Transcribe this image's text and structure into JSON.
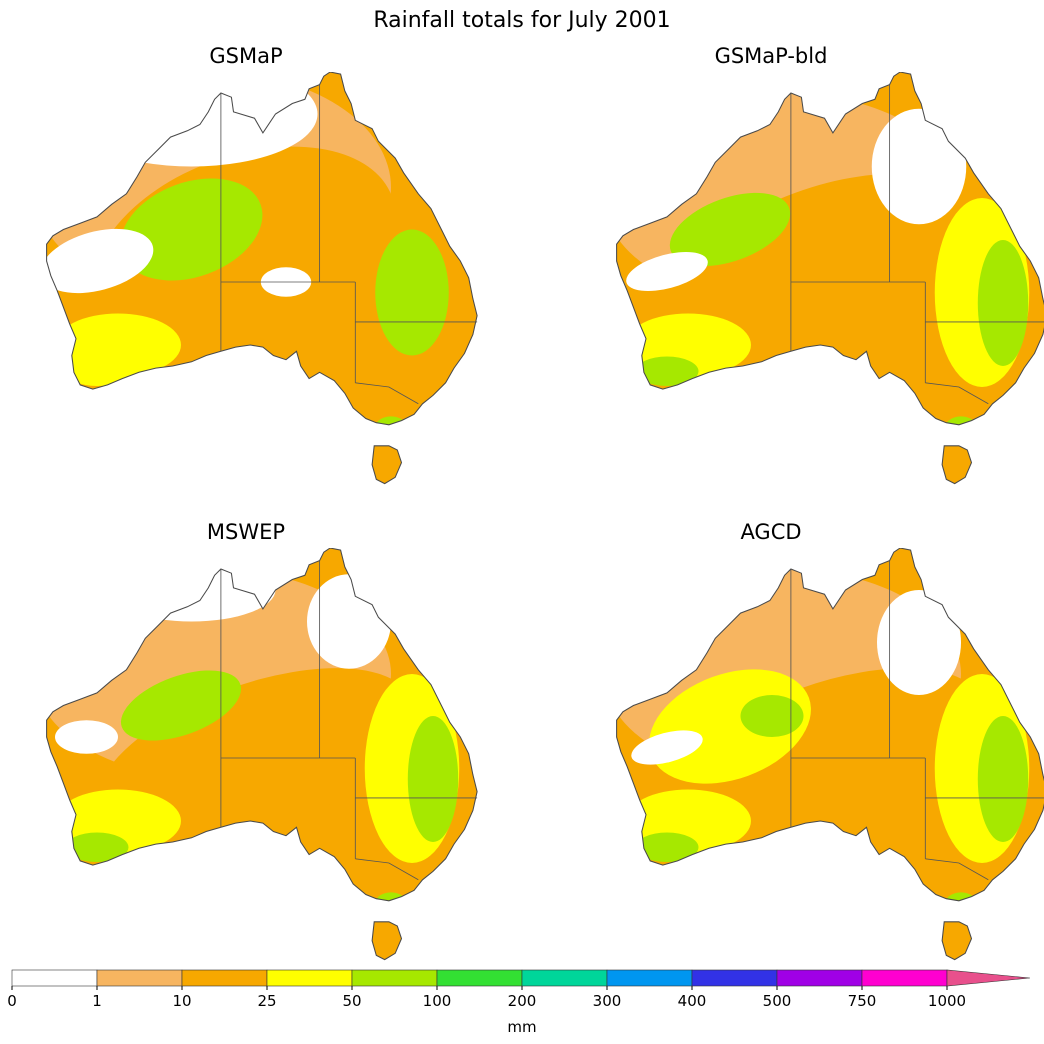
{
  "figure": {
    "title": "Rainfall totals for July 2001"
  },
  "panels": [
    {
      "id": "gsmap",
      "title": "GSMaP"
    },
    {
      "id": "gsmap-bld",
      "title": "GSMaP-bld"
    },
    {
      "id": "mswep",
      "title": "MSWEP"
    },
    {
      "id": "agcd",
      "title": "AGCD"
    }
  ],
  "colorbar": {
    "unit": "mm",
    "ticks": [
      "0",
      "1",
      "10",
      "25",
      "50",
      "100",
      "200",
      "300",
      "400",
      "500",
      "750",
      "1000"
    ],
    "colors": [
      "#ffffff",
      "#f7b560",
      "#f7a800",
      "#ffff00",
      "#a6e800",
      "#33e033",
      "#00d69a",
      "#0096f0",
      "#3232e6",
      "#a000e6",
      "#ff00d0",
      "#e8508c"
    ],
    "extend": "max"
  },
  "palette": {
    "coast": "#4a4a4a",
    "border": "#555555"
  }
}
